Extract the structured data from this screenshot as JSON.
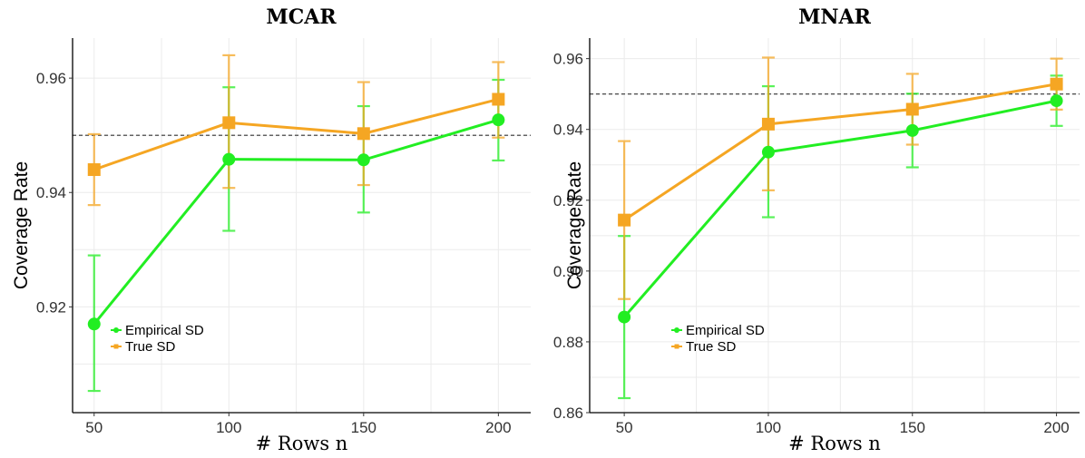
{
  "chart_data": [
    {
      "type": "line",
      "title": "MCAR",
      "xlabel": "# Rows n",
      "ylabel": "Coverage Rate",
      "x": [
        50,
        100,
        150,
        200
      ],
      "xlim": [
        42,
        212
      ],
      "ylim": [
        0.9015,
        0.967
      ],
      "yticks": [
        0.92,
        0.94,
        0.96
      ],
      "ytick_labels": [
        "0.92",
        "0.94",
        "0.96"
      ],
      "xticks": [
        50,
        100,
        150,
        200
      ],
      "xtick_labels": [
        "50",
        "100",
        "150",
        "200"
      ],
      "reference_line": 0.95,
      "grid": true,
      "legend_position": "lower-left",
      "series": [
        {
          "name": "Empirical SD",
          "color": "#22ee22",
          "marker": "circle",
          "values": [
            0.917,
            0.9458,
            0.9457,
            0.9527
          ],
          "err_low": [
            0.9053,
            0.9333,
            0.9365,
            0.9456
          ],
          "err_high": [
            0.929,
            0.9584,
            0.9551,
            0.9597
          ]
        },
        {
          "name": "True SD",
          "color": "#f5a623",
          "marker": "square",
          "values": [
            0.944,
            0.9522,
            0.9503,
            0.9563
          ],
          "err_low": [
            0.9378,
            0.9408,
            0.9413,
            0.9496
          ],
          "err_high": [
            0.9502,
            0.964,
            0.9593,
            0.9628
          ]
        }
      ]
    },
    {
      "type": "line",
      "title": "MNAR",
      "xlabel": "# Rows n",
      "ylabel": "Coverage Rate",
      "x": [
        50,
        100,
        150,
        200
      ],
      "xlim": [
        38,
        208
      ],
      "ylim": [
        0.86,
        0.9658
      ],
      "yticks": [
        0.86,
        0.88,
        0.9,
        0.92,
        0.94,
        0.96
      ],
      "ytick_labels": [
        "0.86",
        "0.88",
        "0.90",
        "0.92",
        "0.94",
        "0.96"
      ],
      "xticks": [
        50,
        100,
        150,
        200
      ],
      "xtick_labels": [
        "50",
        "100",
        "150",
        "200"
      ],
      "reference_line": 0.95,
      "grid": true,
      "legend_position": "lower-left",
      "series": [
        {
          "name": "Empirical SD",
          "color": "#22ee22",
          "marker": "circle",
          "values": [
            0.887,
            0.9336,
            0.9397,
            0.9481
          ],
          "err_low": [
            0.8641,
            0.9152,
            0.9293,
            0.941
          ],
          "err_high": [
            0.9099,
            0.9522,
            0.9501,
            0.9552
          ]
        },
        {
          "name": "True SD",
          "color": "#f5a623",
          "marker": "square",
          "values": [
            0.9144,
            0.9415,
            0.9457,
            0.9528
          ],
          "err_low": [
            0.8921,
            0.9228,
            0.9357,
            0.9456
          ],
          "err_high": [
            0.9367,
            0.9603,
            0.9557,
            0.96
          ]
        }
      ]
    }
  ]
}
